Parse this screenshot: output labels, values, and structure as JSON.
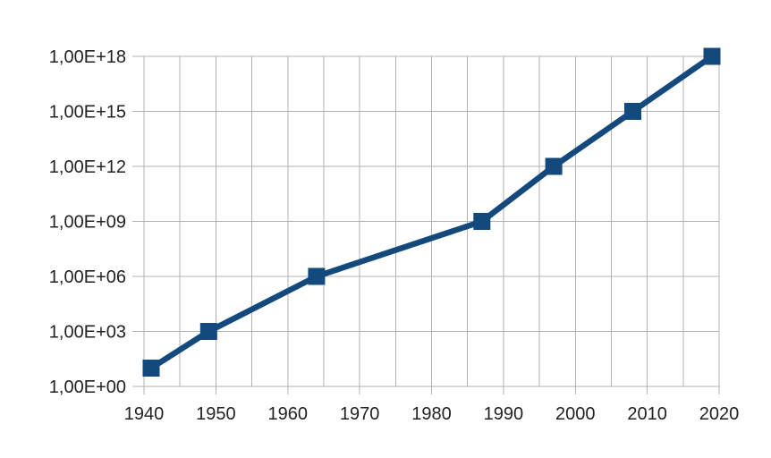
{
  "chart_data": {
    "type": "line",
    "title": "",
    "x": [
      1941,
      1949,
      1964,
      1987,
      1997,
      2008,
      2019
    ],
    "values": [
      10,
      1000,
      1000000,
      1000000000,
      1000000000000,
      1000000000000000,
      1000000000000000000
    ],
    "x_axis": {
      "min": 1940,
      "max": 2020,
      "major_tick_interval": 10,
      "minor_gridline_interval": 5,
      "tick_labels": [
        "1940",
        "1950",
        "1960",
        "1970",
        "1980",
        "1990",
        "2000",
        "2010",
        "2020"
      ]
    },
    "y_axis": {
      "scale": "log10",
      "min_exponent": 0,
      "max_exponent": 18,
      "tick_exponent_step": 3,
      "tick_labels": [
        "1,00E+00",
        "1,00E+03",
        "1,00E+06",
        "1,00E+09",
        "1,00E+12",
        "1,00E+15",
        "1,00E+18"
      ]
    },
    "grid": {
      "horizontal_major": true,
      "vertical_minor": true
    },
    "legend": "none",
    "marker": "square",
    "colors": {
      "series": "#14497D",
      "gridline": "#B3B3B3",
      "tick_text": "#222222",
      "background": "#FFFFFF"
    }
  }
}
